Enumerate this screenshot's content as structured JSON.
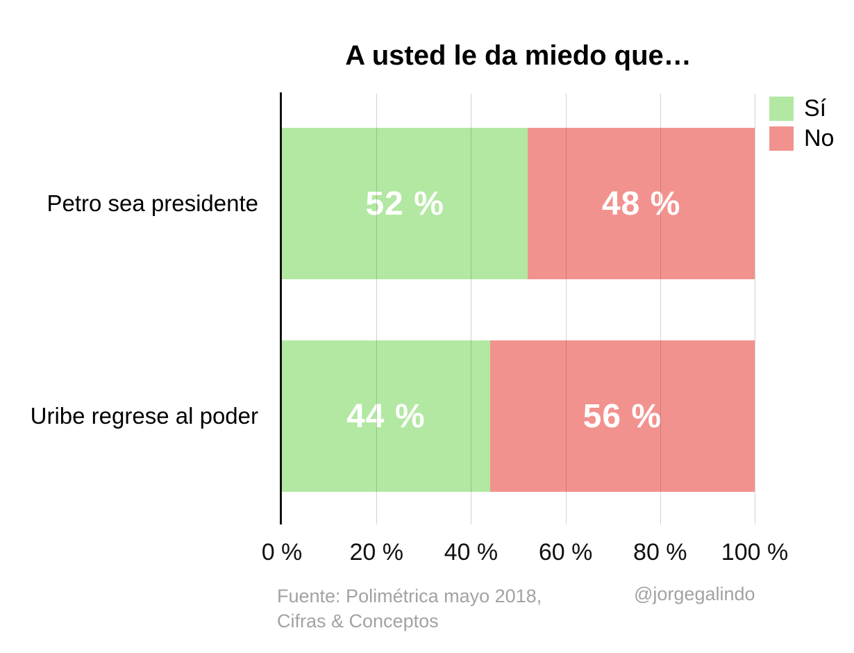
{
  "chart_data": {
    "type": "bar",
    "orientation": "horizontal",
    "stacked": true,
    "title": "A usted le da miedo que…",
    "categories": [
      "Petro sea presidente",
      "Uribe regrese al poder"
    ],
    "series": [
      {
        "name": "Sí",
        "color": "#b2e8a2",
        "values": [
          52,
          44
        ],
        "labels": [
          "52 %",
          "44 %"
        ]
      },
      {
        "name": "No",
        "color": "#f2928e",
        "values": [
          48,
          56
        ],
        "labels": [
          "48 %",
          "56 %"
        ]
      }
    ],
    "xlim": [
      0,
      100
    ],
    "x_ticks": [
      {
        "label": "0 %",
        "value": 0
      },
      {
        "label": "20 %",
        "value": 20
      },
      {
        "label": "40 %",
        "value": 40
      },
      {
        "label": "60 %",
        "value": 60
      },
      {
        "label": "80 %",
        "value": 80
      },
      {
        "label": "100 %",
        "value": 100
      }
    ],
    "grid": true,
    "legend_position": "top-right",
    "value_label_color": "#ffffff",
    "axis_color": "#111111",
    "gridline_color": "rgba(70,70,70,0.25)"
  },
  "footer": {
    "source_line1": "Fuente: Polimétrica mayo 2018,",
    "source_line2": "Cifras & Conceptos",
    "credit": "@jorgegalindo"
  }
}
